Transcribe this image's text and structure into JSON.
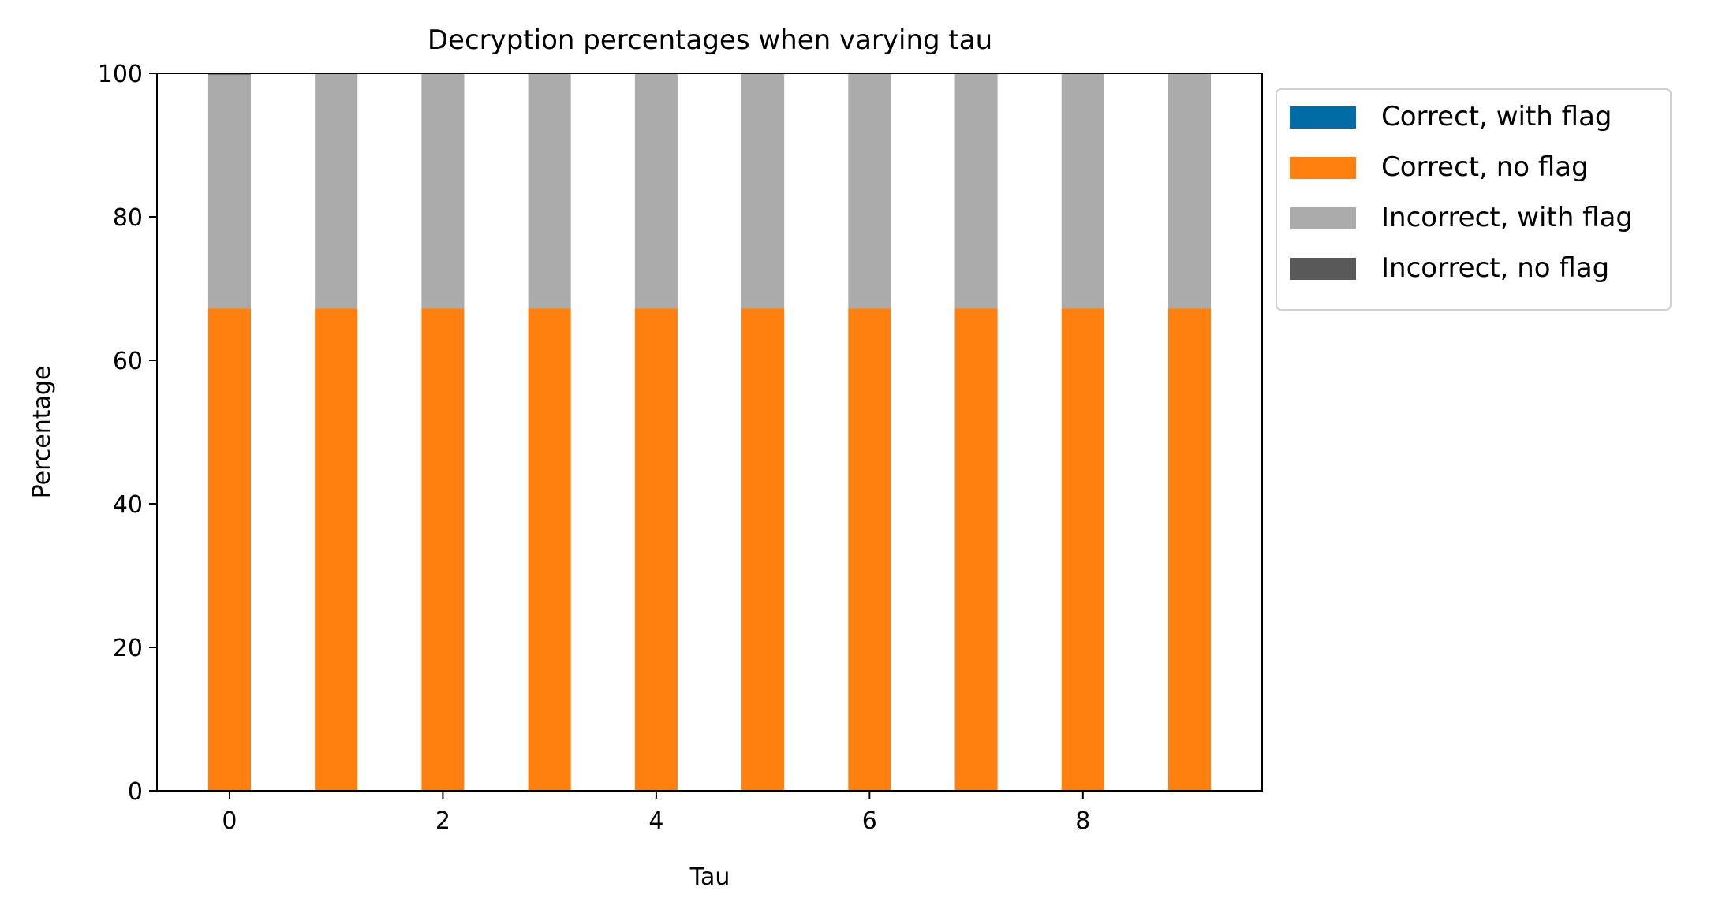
{
  "chart_data": {
    "type": "bar",
    "stacked": true,
    "title": "Decryption percentages when varying tau",
    "xlabel": "Tau",
    "ylabel": "Percentage",
    "x": [
      0,
      1,
      2,
      3,
      4,
      5,
      6,
      7,
      8,
      9
    ],
    "x_ticks": [
      "0",
      "2",
      "4",
      "6",
      "8"
    ],
    "xlim": [
      -0.68,
      9.68
    ],
    "y_ticks": [
      "0",
      "20",
      "40",
      "60",
      "80",
      "100"
    ],
    "ylim": [
      0,
      100
    ],
    "grid": false,
    "legend_position": "outside-right-top",
    "series": [
      {
        "name": "Correct, with flag",
        "color": "#006BA4",
        "values": [
          0,
          0,
          0,
          0,
          0,
          0,
          0,
          0,
          0,
          0
        ]
      },
      {
        "name": "Correct, no flag",
        "color": "#FF800E",
        "values": [
          67.2,
          67.2,
          67.2,
          67.2,
          67.2,
          67.2,
          67.2,
          67.2,
          67.2,
          67.2
        ]
      },
      {
        "name": "Incorrect, with flag",
        "color": "#ABABAB",
        "values": [
          32.6,
          32.8,
          32.8,
          32.8,
          32.8,
          32.8,
          32.8,
          32.8,
          32.8,
          32.8
        ]
      },
      {
        "name": "Incorrect, no flag",
        "color": "#595959",
        "values": [
          0.2,
          0,
          0,
          0,
          0,
          0,
          0,
          0,
          0,
          0
        ]
      }
    ]
  }
}
